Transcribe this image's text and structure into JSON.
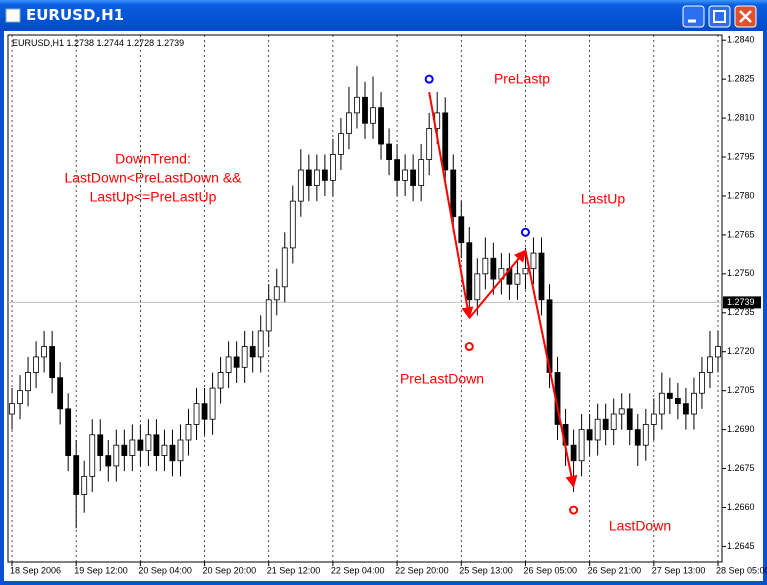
{
  "window_title": "EURUSD,H1",
  "chart_data": {
    "type": "candlestick",
    "info": "EURUSD,H1  1.2738 1.2744 1.2728 1.2739",
    "categories": [
      "18 Sep 2006",
      null,
      null,
      null,
      null,
      null,
      null,
      null,
      "19 Sep 12:00",
      null,
      null,
      null,
      null,
      null,
      null,
      null,
      "20 Sep 04:00",
      null,
      null,
      null,
      null,
      null,
      null,
      null,
      "20 Sep 20:00",
      null,
      null,
      null,
      null,
      null,
      null,
      null,
      "21 Sep 12:00",
      null,
      null,
      null,
      null,
      null,
      null,
      null,
      "22 Sep 04:00",
      null,
      null,
      null,
      null,
      null,
      null,
      null,
      "22 Sep 20:00",
      null,
      null,
      null,
      null,
      null,
      null,
      null,
      "25 Sep 13:00",
      null,
      null,
      null,
      null,
      null,
      null,
      null,
      "26 Sep 05:00",
      null,
      null,
      null,
      null,
      null,
      null,
      null,
      "26 Sep 21:00",
      null,
      null,
      null,
      null,
      null,
      null,
      null,
      "27 Sep 13:00",
      null,
      null,
      null,
      null,
      null,
      null,
      null,
      "28 Sep 05:00"
    ],
    "open": [
      1.2696,
      1.27,
      1.2705,
      1.2712,
      1.2718,
      1.2722,
      1.271,
      1.2698,
      1.268,
      1.2665,
      1.2672,
      1.2688,
      1.268,
      1.2676,
      1.2684,
      1.268,
      1.2686,
      1.2682,
      1.2688,
      1.268,
      1.2684,
      1.2678,
      1.2686,
      1.2692,
      1.27,
      1.2694,
      1.2706,
      1.2712,
      1.2718,
      1.2714,
      1.2722,
      1.2718,
      1.2728,
      1.274,
      1.2745,
      1.276,
      1.2778,
      1.279,
      1.2784,
      1.279,
      1.2786,
      1.2796,
      1.2804,
      1.2812,
      1.2818,
      1.2808,
      1.2814,
      1.28,
      1.2794,
      1.2786,
      1.279,
      1.2784,
      1.2794,
      1.2806,
      1.2812,
      1.279,
      1.2772,
      1.2762,
      1.274,
      1.275,
      1.2756,
      1.2748,
      1.2752,
      1.2746,
      1.275,
      1.2752,
      1.2758,
      1.274,
      1.2712,
      1.2692,
      1.2684,
      1.2678,
      1.269,
      1.2686,
      1.2694,
      1.269,
      1.2696,
      1.2698,
      1.269,
      1.2684,
      1.2692,
      1.2696,
      1.2704,
      1.2702,
      1.27,
      1.2696,
      1.2704,
      1.2712,
      1.2718
    ],
    "high": [
      1.2706,
      1.2711,
      1.2718,
      1.2724,
      1.2728,
      1.2728,
      1.2716,
      1.2704,
      1.2686,
      1.2678,
      1.2694,
      1.2694,
      1.2686,
      1.269,
      1.269,
      1.2692,
      1.2692,
      1.2694,
      1.2694,
      1.269,
      1.269,
      1.2692,
      1.2698,
      1.2706,
      1.2706,
      1.2712,
      1.2718,
      1.2724,
      1.2724,
      1.2728,
      1.2728,
      1.2734,
      1.2746,
      1.2752,
      1.2766,
      1.2784,
      1.2798,
      1.2796,
      1.2796,
      1.2796,
      1.2802,
      1.281,
      1.2822,
      1.283,
      1.2824,
      1.2826,
      1.282,
      1.2806,
      1.28,
      1.2796,
      1.2796,
      1.28,
      1.2812,
      1.282,
      1.2818,
      1.2796,
      1.2778,
      1.2768,
      1.2756,
      1.2764,
      1.2762,
      1.2758,
      1.2758,
      1.2756,
      1.276,
      1.2764,
      1.2764,
      1.2746,
      1.2718,
      1.2698,
      1.269,
      1.2696,
      1.2696,
      1.27,
      1.27,
      1.2702,
      1.2704,
      1.2704,
      1.2696,
      1.2698,
      1.2702,
      1.2712,
      1.271,
      1.2708,
      1.2706,
      1.271,
      1.2718,
      1.2728,
      1.2728
    ],
    "low": [
      1.269,
      1.2694,
      1.2699,
      1.2706,
      1.2712,
      1.2704,
      1.2692,
      1.2674,
      1.2652,
      1.2658,
      1.2666,
      1.2674,
      1.267,
      1.267,
      1.2674,
      1.2674,
      1.2676,
      1.2676,
      1.2674,
      1.2674,
      1.2672,
      1.2672,
      1.268,
      1.2686,
      1.2688,
      1.2688,
      1.27,
      1.2706,
      1.2708,
      1.2708,
      1.2712,
      1.2712,
      1.2722,
      1.2734,
      1.2739,
      1.2754,
      1.2772,
      1.2778,
      1.2778,
      1.278,
      1.278,
      1.279,
      1.2798,
      1.2806,
      1.2802,
      1.2802,
      1.2794,
      1.2788,
      1.278,
      1.278,
      1.2778,
      1.2778,
      1.2788,
      1.28,
      1.2784,
      1.2766,
      1.2756,
      1.2733,
      1.2734,
      1.2744,
      1.2742,
      1.2742,
      1.274,
      1.274,
      1.2744,
      1.2746,
      1.2734,
      1.2706,
      1.2686,
      1.2676,
      1.2666,
      1.2672,
      1.268,
      1.268,
      1.2684,
      1.2684,
      1.269,
      1.2684,
      1.2676,
      1.2678,
      1.2686,
      1.269,
      1.2696,
      1.2694,
      1.269,
      1.269,
      1.2698,
      1.2706,
      1.2712
    ],
    "close": [
      1.27,
      1.2705,
      1.2712,
      1.2718,
      1.2722,
      1.271,
      1.2698,
      1.268,
      1.2665,
      1.2672,
      1.2688,
      1.268,
      1.2676,
      1.2684,
      1.268,
      1.2686,
      1.2682,
      1.2688,
      1.268,
      1.2684,
      1.2678,
      1.2686,
      1.2692,
      1.27,
      1.2694,
      1.2706,
      1.2712,
      1.2718,
      1.2714,
      1.2722,
      1.2718,
      1.2728,
      1.274,
      1.2745,
      1.276,
      1.2778,
      1.279,
      1.2784,
      1.279,
      1.2786,
      1.2796,
      1.2804,
      1.2812,
      1.2818,
      1.2808,
      1.2814,
      1.28,
      1.2794,
      1.2786,
      1.279,
      1.2784,
      1.2794,
      1.2806,
      1.2812,
      1.279,
      1.2772,
      1.2762,
      1.274,
      1.275,
      1.2756,
      1.2748,
      1.2752,
      1.2746,
      1.275,
      1.2752,
      1.2758,
      1.274,
      1.2712,
      1.2692,
      1.2684,
      1.2678,
      1.269,
      1.2686,
      1.2694,
      1.269,
      1.2696,
      1.2698,
      1.269,
      1.2684,
      1.2692,
      1.2696,
      1.2704,
      1.2702,
      1.27,
      1.2696,
      1.2704,
      1.2712,
      1.2718,
      1.2722
    ],
    "ylim": [
      1.2639,
      1.2842
    ],
    "yticks": [
      1.2645,
      {
        "value": 1.266,
        "label": "1.2660"
      },
      1.2675,
      {
        "value": 1.269,
        "label": "1.2690"
      },
      1.2705,
      {
        "value": 1.272,
        "label": "1.2720"
      },
      1.2735,
      {
        "value": 1.275,
        "label": "1.2750"
      },
      1.2765,
      {
        "value": 1.278,
        "label": "1.2780"
      },
      1.2795,
      {
        "value": 1.281,
        "label": "1.2810"
      },
      1.2825,
      {
        "value": 1.284,
        "label": "1.2840"
      }
    ],
    "bid": 1.2739,
    "grid": true,
    "zigzag": {
      "color": "#ff0000",
      "indices": [
        52,
        57,
        64,
        70
      ],
      "values": [
        1.282,
        1.2733,
        1.2759,
        1.2668
      ]
    },
    "markers": [
      {
        "index": 52,
        "value": 1.2825,
        "color": "#0000ff"
      },
      {
        "index": 57,
        "value": 1.2722,
        "color": "#ff0000"
      },
      {
        "index": 64,
        "value": 1.2766,
        "color": "#0000ff"
      },
      {
        "index": 70,
        "value": 1.2659,
        "color": "#ff0000"
      }
    ],
    "annotations": [
      "PreLastp",
      "DownTrend:",
      "LastDown<PreLastDown &&",
      "LastUp<=PreLastUp",
      "LastUp",
      "PreLastDown",
      "LastDown"
    ]
  }
}
